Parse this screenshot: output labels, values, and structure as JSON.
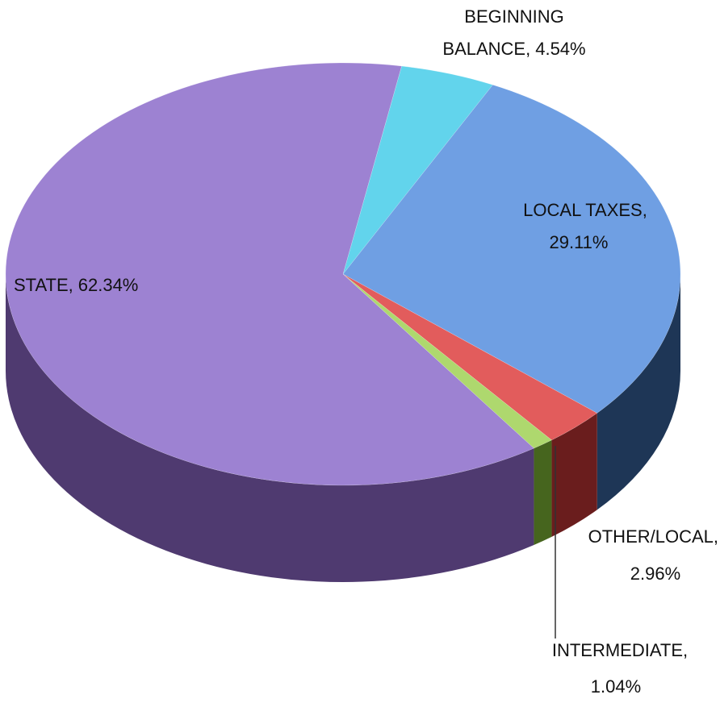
{
  "chart_data": {
    "type": "pie",
    "categories": [
      "BEGINNING BALANCE,",
      "LOCAL TAXES,",
      "OTHER/LOCAL,",
      "INTERMEDIATE,",
      "STATE,"
    ],
    "values": [
      4.54,
      29.11,
      2.96,
      1.04,
      62.34
    ],
    "value_labels": [
      "4.54%",
      "29.11%",
      "2.96%",
      "1.04%",
      "62.34%"
    ],
    "colors": [
      "#62d4ec",
      "#6f9fe3",
      "#e25c5c",
      "#aed86e",
      "#9d82d2"
    ],
    "side_colors": [
      "#2a8fa8",
      "#1e3656",
      "#6a1d1d",
      "#46651e",
      "#4f3a70"
    ]
  }
}
